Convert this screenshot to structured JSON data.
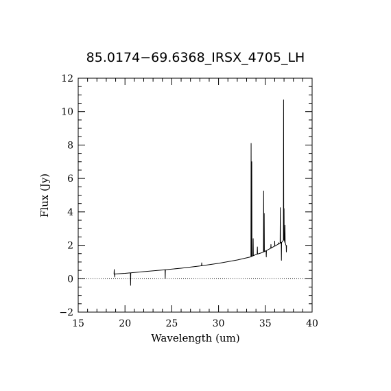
{
  "chart_data": {
    "type": "line",
    "title": "85.0174−69.6368_IRSX_4705_LH",
    "xlabel": "Wavelength (um)",
    "ylabel": "Flux (Jy)",
    "xlim": [
      15,
      40
    ],
    "ylim": [
      -2,
      12
    ],
    "x_ticks": [
      15,
      20,
      25,
      30,
      35,
      40
    ],
    "x_tick_labels": [
      "15",
      "20",
      "25",
      "30",
      "35",
      "40"
    ],
    "y_ticks": [
      -2,
      0,
      2,
      4,
      6,
      8,
      10,
      12
    ],
    "y_tick_labels": [
      "−2",
      "0",
      "2",
      "4",
      "6",
      "8",
      "10",
      "12"
    ],
    "reference_line": {
      "y": 0,
      "style": "dotted"
    },
    "grid": false,
    "series": [
      {
        "color": "#000000",
        "continuum": {
          "x": [
            18.8,
            20,
            22,
            24,
            26,
            28,
            30,
            32,
            33.4,
            33.6,
            34,
            34.6,
            35,
            35.5,
            36,
            36.5,
            36.8,
            37.0,
            37.2
          ],
          "y": [
            0.28,
            0.32,
            0.42,
            0.52,
            0.63,
            0.76,
            0.92,
            1.12,
            1.3,
            1.35,
            1.45,
            1.55,
            1.65,
            1.8,
            1.95,
            2.1,
            2.2,
            2.35,
            2.0
          ]
        },
        "features": [
          {
            "x": 18.85,
            "y": 0.55
          },
          {
            "x": 18.9,
            "y": 0.1
          },
          {
            "x": 20.6,
            "y": -0.4
          },
          {
            "x": 24.3,
            "y": 0.0
          },
          {
            "x": 28.2,
            "y": 0.95
          },
          {
            "x": 33.48,
            "y": 8.1
          },
          {
            "x": 33.55,
            "y": 7.0
          },
          {
            "x": 33.7,
            "y": 2.4
          },
          {
            "x": 34.15,
            "y": 1.9
          },
          {
            "x": 34.82,
            "y": 5.25
          },
          {
            "x": 34.88,
            "y": 3.9
          },
          {
            "x": 35.1,
            "y": 1.3
          },
          {
            "x": 35.6,
            "y": 2.05
          },
          {
            "x": 36.0,
            "y": 2.25
          },
          {
            "x": 36.4,
            "y": 2.15
          },
          {
            "x": 36.6,
            "y": 4.25
          },
          {
            "x": 36.72,
            "y": 1.1
          },
          {
            "x": 36.95,
            "y": 10.7
          },
          {
            "x": 37.0,
            "y": 4.2
          },
          {
            "x": 37.1,
            "y": 3.2
          },
          {
            "x": 37.25,
            "y": 1.6
          }
        ]
      }
    ]
  }
}
